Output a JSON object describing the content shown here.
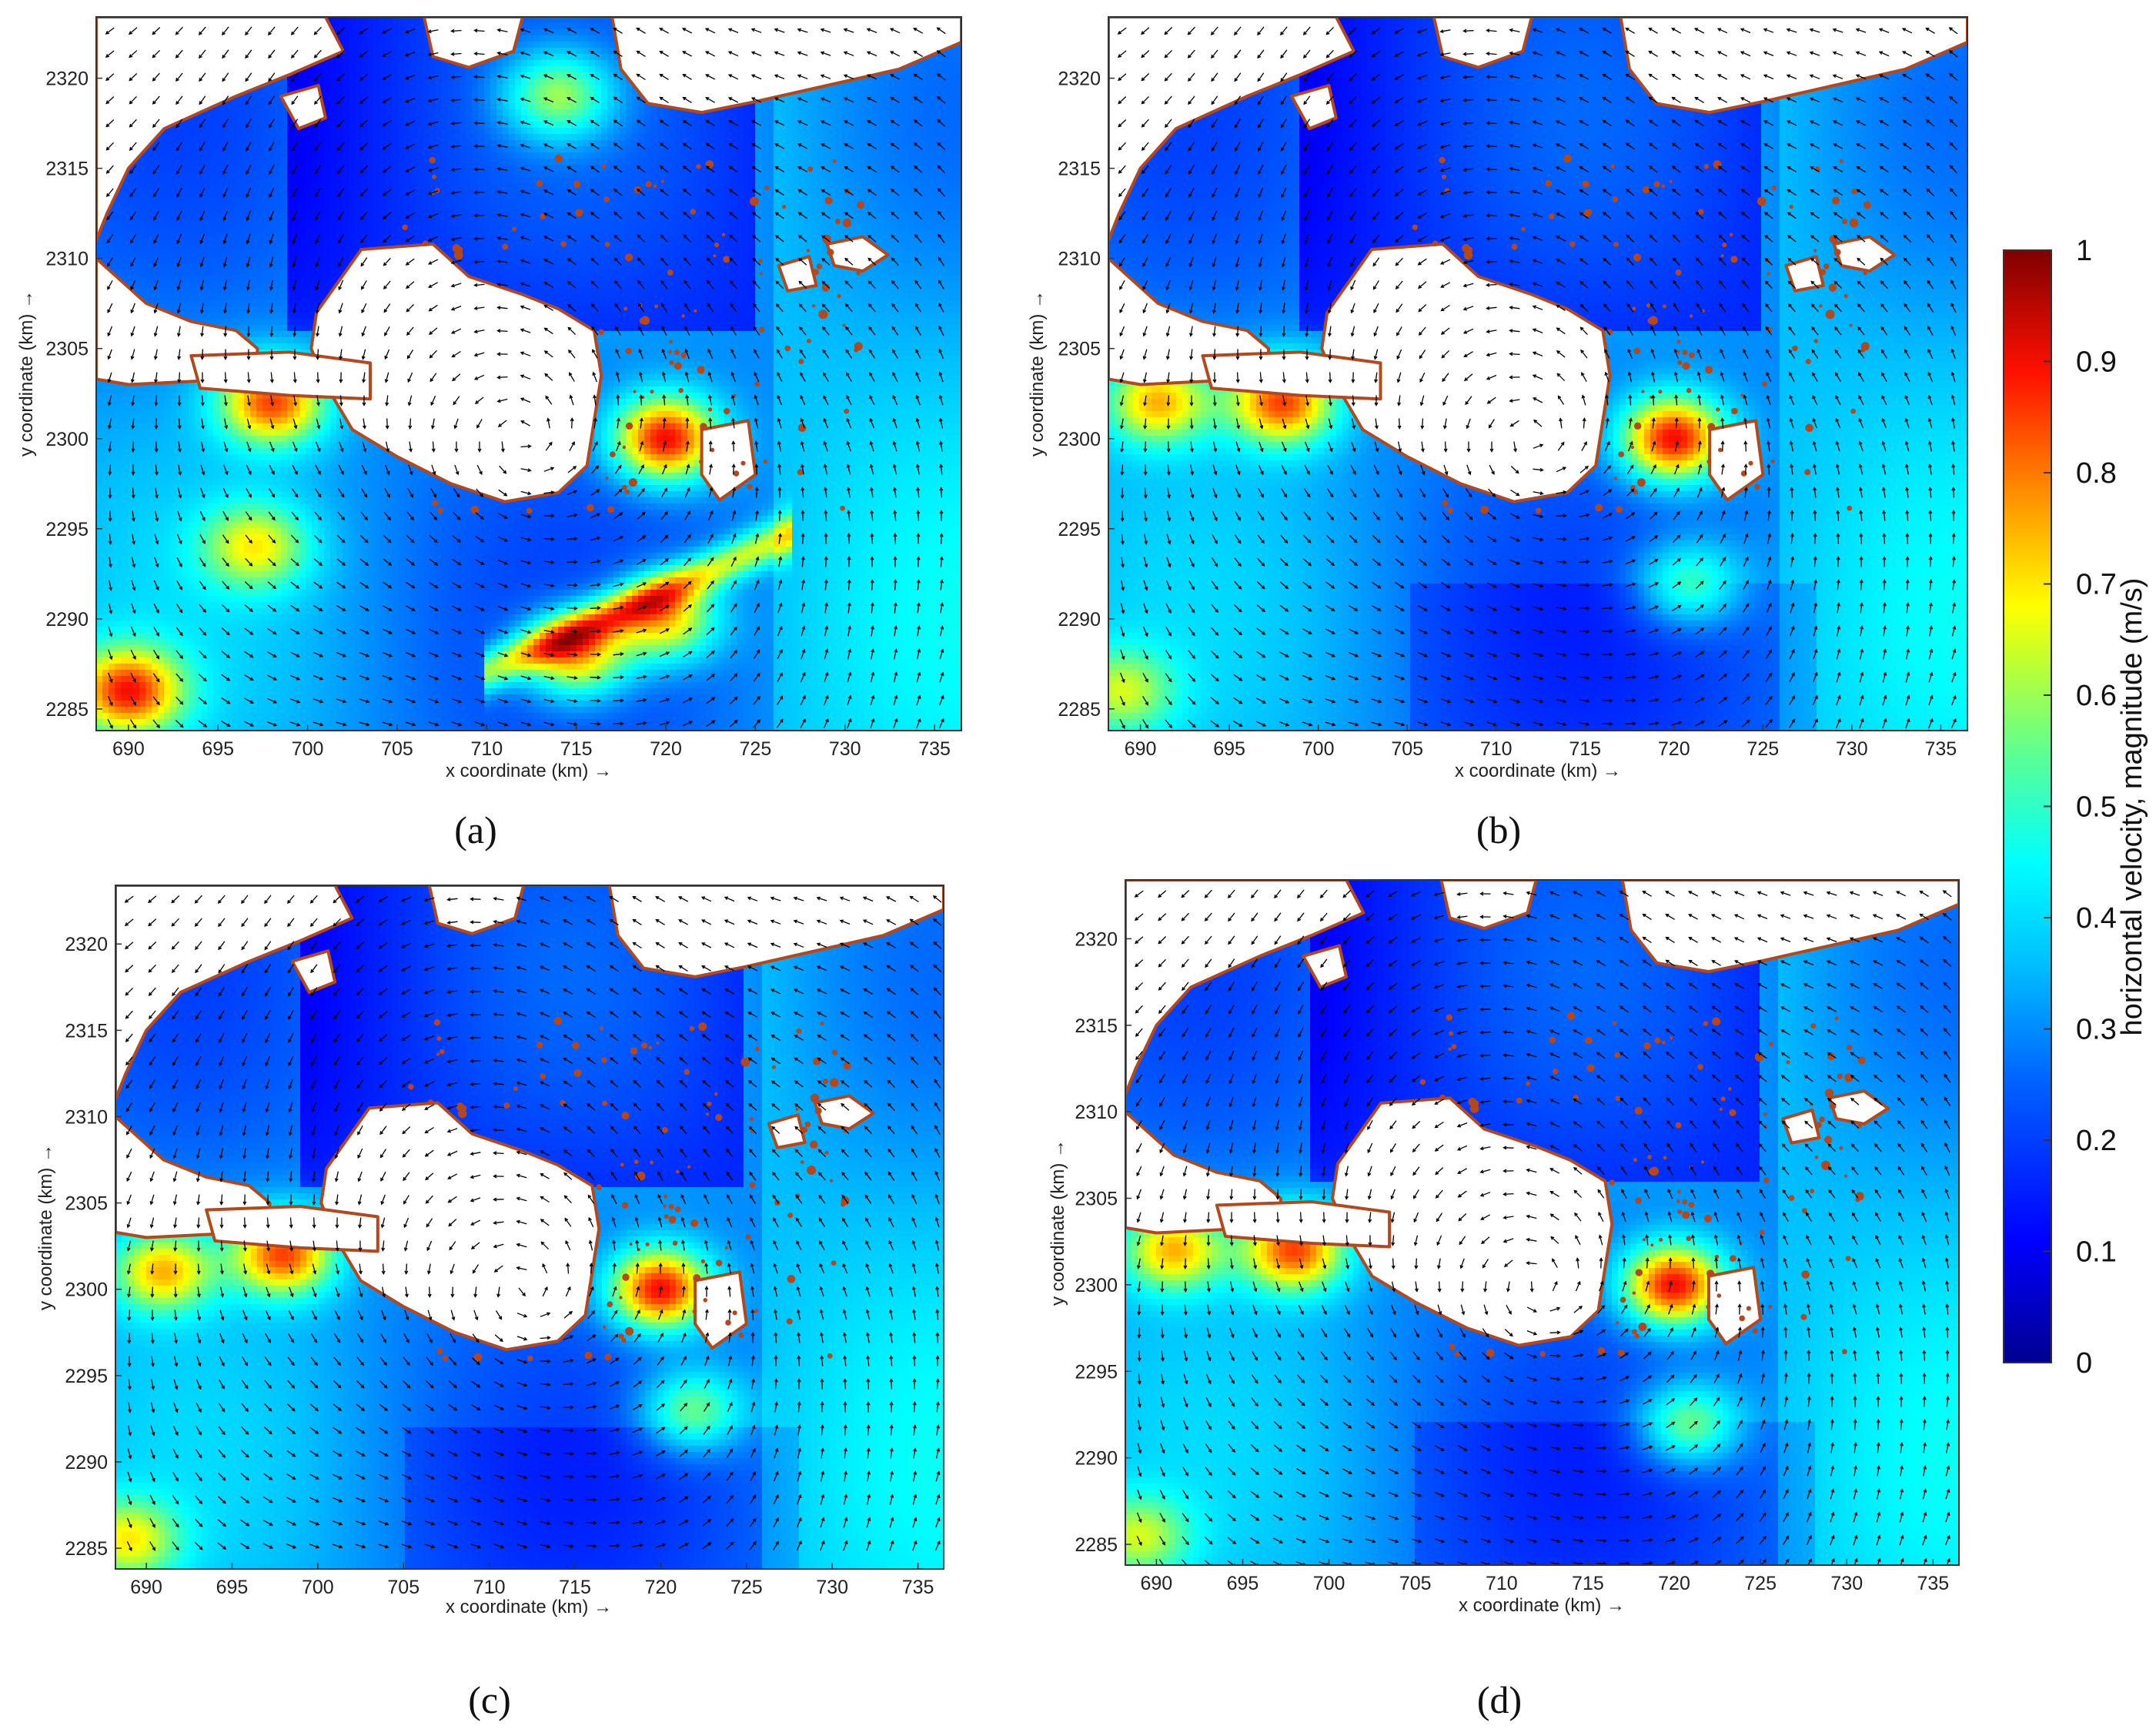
{
  "figure": {
    "panels": [
      {
        "id": "a",
        "label": "(a)",
        "xlabel": "x coordinate (km) →",
        "ylabel": "y coordinate (km) →"
      },
      {
        "id": "b",
        "label": "(b)",
        "xlabel": "x coordinate (km) →",
        "ylabel": "y coordinate (km) →"
      },
      {
        "id": "c",
        "label": "(c)",
        "xlabel": "x coordinate (km) →",
        "ylabel": "y coordinate (km) →"
      },
      {
        "id": "d",
        "label": "(d)",
        "xlabel": "x coordinate (km) →",
        "ylabel": "y coordinate (km) →"
      }
    ],
    "colorbar": {
      "label": "horizontal velocity, magnitude (m/s)",
      "ticks": [
        "0",
        "0.1",
        "0.2",
        "0.3",
        "0.4",
        "0.5",
        "0.6",
        "0.7",
        "0.8",
        "0.9",
        "1"
      ],
      "range": [
        0,
        1
      ],
      "colormap": "jet",
      "colors": [
        "#00008f",
        "#0000ff",
        "#0080ff",
        "#00ffff",
        "#80ff80",
        "#ffff00",
        "#ff8000",
        "#ff0000",
        "#800000"
      ]
    },
    "land_color": "#ffffff",
    "coast_color": "#b5471b",
    "arrow_color": "#000000"
  },
  "chart_data": [
    {
      "type": "heatmap",
      "panel": "a",
      "xlabel": "x coordinate (km) →",
      "ylabel": "y coordinate (km) →",
      "x_ticks": [
        690,
        695,
        700,
        705,
        710,
        715,
        720,
        725,
        730,
        735
      ],
      "y_ticks": [
        2285,
        2290,
        2295,
        2300,
        2305,
        2310,
        2315,
        2320
      ],
      "xlim": [
        688.2,
        736.5
      ],
      "ylim": [
        2283.8,
        2323.4
      ],
      "value_range": [
        0,
        1
      ],
      "hotspots": [
        {
          "x": 690,
          "y": 2286,
          "v": 0.9
        },
        {
          "x": 698,
          "y": 2302,
          "v": 0.85
        },
        {
          "x": 697,
          "y": 2294,
          "v": 0.7
        },
        {
          "x": 715,
          "y": 2288,
          "v": 0.72
        },
        {
          "x": 720,
          "y": 2290,
          "v": 0.7
        },
        {
          "x": 720,
          "y": 2300,
          "v": 0.9
        },
        {
          "x": 714,
          "y": 2319,
          "v": 0.6
        }
      ]
    },
    {
      "type": "heatmap",
      "panel": "b",
      "xlabel": "x coordinate (km) →",
      "ylabel": "y coordinate (km) →",
      "x_ticks": [
        690,
        695,
        700,
        705,
        710,
        715,
        720,
        725,
        730,
        735
      ],
      "y_ticks": [
        2285,
        2290,
        2295,
        2300,
        2305,
        2310,
        2315,
        2320
      ],
      "xlim": [
        688.2,
        736.5
      ],
      "ylim": [
        2283.8,
        2323.4
      ],
      "value_range": [
        0,
        1
      ],
      "hotspots": [
        {
          "x": 689,
          "y": 2286,
          "v": 0.65
        },
        {
          "x": 691,
          "y": 2302,
          "v": 0.75
        },
        {
          "x": 698,
          "y": 2302,
          "v": 0.85
        },
        {
          "x": 720,
          "y": 2300,
          "v": 0.9
        },
        {
          "x": 721,
          "y": 2292,
          "v": 0.5
        }
      ]
    },
    {
      "type": "heatmap",
      "panel": "c",
      "xlabel": "x coordinate (km) →",
      "ylabel": "y coordinate (km) →",
      "x_ticks": [
        690,
        695,
        700,
        705,
        710,
        715,
        720,
        725,
        730,
        735
      ],
      "y_ticks": [
        2285,
        2290,
        2295,
        2300,
        2305,
        2310,
        2315,
        2320
      ],
      "xlim": [
        688.2,
        736.5
      ],
      "ylim": [
        2283.8,
        2323.4
      ],
      "value_range": [
        0,
        1
      ],
      "hotspots": [
        {
          "x": 689,
          "y": 2285.5,
          "v": 0.7
        },
        {
          "x": 691,
          "y": 2301,
          "v": 0.75
        },
        {
          "x": 698,
          "y": 2302,
          "v": 0.85
        },
        {
          "x": 720,
          "y": 2300,
          "v": 0.9
        },
        {
          "x": 722,
          "y": 2293,
          "v": 0.55
        }
      ]
    },
    {
      "type": "heatmap",
      "panel": "d",
      "xlabel": "x coordinate (km) →",
      "ylabel": "y coordinate (km) →",
      "x_ticks": [
        690,
        695,
        700,
        705,
        710,
        715,
        720,
        725,
        730,
        735
      ],
      "y_ticks": [
        2285,
        2290,
        2295,
        2300,
        2305,
        2310,
        2315,
        2320
      ],
      "xlim": [
        688.2,
        736.5
      ],
      "ylim": [
        2283.8,
        2323.4
      ],
      "value_range": [
        0,
        1
      ],
      "hotspots": [
        {
          "x": 689,
          "y": 2285.5,
          "v": 0.65
        },
        {
          "x": 691,
          "y": 2302,
          "v": 0.75
        },
        {
          "x": 698,
          "y": 2302,
          "v": 0.85
        },
        {
          "x": 720,
          "y": 2300,
          "v": 0.9
        },
        {
          "x": 721,
          "y": 2292,
          "v": 0.55
        }
      ]
    }
  ]
}
